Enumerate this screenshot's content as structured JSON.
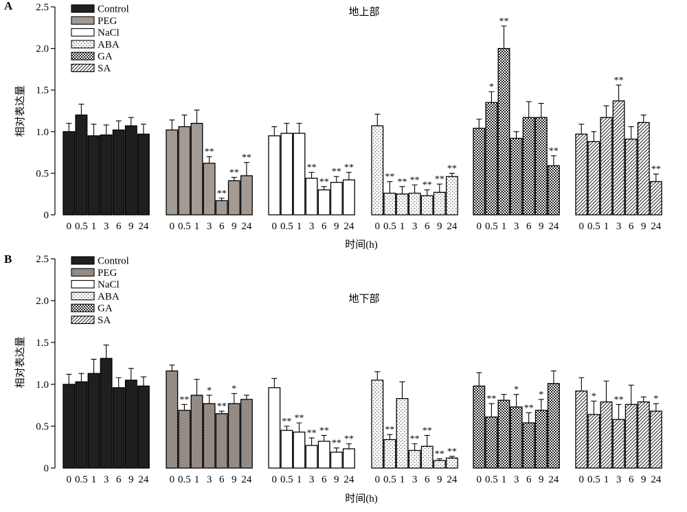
{
  "colors": {
    "control": "#1f1f1f",
    "peg": "#a39a94",
    "outline": "#000000",
    "background": "#ffffff"
  },
  "legend_entries": [
    "Control",
    "PEG",
    "NaCl",
    "ABA",
    "GA",
    "SA"
  ],
  "chart_data": [
    {
      "type": "bar",
      "panel_label": "A",
      "title": "地上部",
      "xlabel": "时间(h)",
      "ylabel": "相对表达量",
      "ylim": [
        0,
        2.5
      ],
      "yticks": [
        "0",
        "0.5",
        "1.0",
        "1.5",
        "2.0",
        "2.5"
      ],
      "categories": [
        "0",
        "0.5",
        "1",
        "3",
        "6",
        "9",
        "24"
      ],
      "legend_placement": "top-left",
      "grid": false,
      "series": [
        {
          "name": "Control",
          "pattern": "control",
          "values": [
            1.0,
            1.2,
            0.95,
            0.96,
            1.02,
            1.07,
            0.97
          ],
          "errors": [
            0.1,
            0.13,
            0.14,
            0.12,
            0.11,
            0.1,
            0.12
          ],
          "sig": [
            "",
            "",
            "",
            "",
            "",
            "",
            ""
          ]
        },
        {
          "name": "PEG",
          "pattern": "peg",
          "values": [
            1.02,
            1.06,
            1.1,
            0.62,
            0.17,
            0.41,
            0.47
          ],
          "errors": [
            0.12,
            0.14,
            0.16,
            0.08,
            0.03,
            0.04,
            0.16
          ],
          "sig": [
            "",
            "",
            "",
            "**",
            "**",
            "**",
            "**"
          ]
        },
        {
          "name": "NaCl",
          "pattern": "nacl",
          "values": [
            0.95,
            0.98,
            0.98,
            0.44,
            0.3,
            0.39,
            0.42
          ],
          "errors": [
            0.11,
            0.12,
            0.12,
            0.07,
            0.04,
            0.07,
            0.09
          ],
          "sig": [
            "",
            "",
            "",
            "**",
            "**",
            "**",
            "**"
          ]
        },
        {
          "name": "ABA",
          "pattern": "aba",
          "values": [
            1.07,
            0.26,
            0.25,
            0.26,
            0.23,
            0.27,
            0.46
          ],
          "errors": [
            0.14,
            0.14,
            0.09,
            0.1,
            0.07,
            0.1,
            0.04
          ],
          "sig": [
            "",
            "**",
            "**",
            "**",
            "**",
            "**",
            "**"
          ]
        },
        {
          "name": "GA",
          "pattern": "ga",
          "values": [
            1.04,
            1.35,
            2.0,
            0.92,
            1.17,
            1.17,
            0.59
          ],
          "errors": [
            0.11,
            0.13,
            0.27,
            0.08,
            0.19,
            0.17,
            0.12
          ],
          "sig": [
            "",
            "*",
            "**",
            "",
            "",
            "",
            "**"
          ]
        },
        {
          "name": "SA",
          "pattern": "sa",
          "values": [
            0.97,
            0.88,
            1.17,
            1.37,
            0.91,
            1.11,
            0.4
          ],
          "errors": [
            0.12,
            0.12,
            0.14,
            0.19,
            0.15,
            0.09,
            0.09
          ],
          "sig": [
            "",
            "",
            "",
            "**",
            "",
            "",
            "**"
          ]
        }
      ]
    },
    {
      "type": "bar",
      "panel_label": "B",
      "title": "地下部",
      "xlabel": "时间(h)",
      "ylabel": "相对表达量",
      "ylim": [
        0,
        2.5
      ],
      "yticks": [
        "0",
        "0.5",
        "1.0",
        "1.5",
        "2.0",
        "2.5"
      ],
      "categories": [
        "0",
        "0.5",
        "1",
        "3",
        "6",
        "9",
        "24"
      ],
      "legend_placement": "top-left",
      "grid": false,
      "series": [
        {
          "name": "Control",
          "pattern": "control",
          "values": [
            1.0,
            1.03,
            1.13,
            1.31,
            0.96,
            1.05,
            0.98
          ],
          "errors": [
            0.12,
            0.1,
            0.17,
            0.16,
            0.12,
            0.14,
            0.11
          ],
          "sig": [
            "",
            "",
            "",
            "",
            "",
            "",
            ""
          ]
        },
        {
          "name": "PEG",
          "pattern": "pegB",
          "values": [
            1.16,
            0.69,
            0.87,
            0.77,
            0.65,
            0.77,
            0.82
          ],
          "errors": [
            0.07,
            0.07,
            0.19,
            0.1,
            0.03,
            0.12,
            0.05
          ],
          "sig": [
            "",
            "**",
            "",
            "*",
            "**",
            "*",
            ""
          ]
        },
        {
          "name": "NaCl",
          "pattern": "nacl",
          "values": [
            0.96,
            0.45,
            0.43,
            0.27,
            0.32,
            0.19,
            0.23
          ],
          "errors": [
            0.11,
            0.05,
            0.11,
            0.09,
            0.07,
            0.05,
            0.06
          ],
          "sig": [
            "",
            "**",
            "**",
            "**",
            "**",
            "**",
            "**"
          ]
        },
        {
          "name": "ABA",
          "pattern": "aba",
          "values": [
            1.05,
            0.34,
            0.83,
            0.21,
            0.26,
            0.09,
            0.12
          ],
          "errors": [
            0.1,
            0.06,
            0.2,
            0.08,
            0.13,
            0.02,
            0.02
          ],
          "sig": [
            "",
            "**",
            "",
            "**",
            "**",
            "**",
            "**"
          ]
        },
        {
          "name": "GA",
          "pattern": "ga",
          "values": [
            0.98,
            0.61,
            0.81,
            0.73,
            0.54,
            0.69,
            1.01
          ],
          "errors": [
            0.16,
            0.16,
            0.07,
            0.15,
            0.12,
            0.13,
            0.15
          ],
          "sig": [
            "",
            "**",
            "",
            "*",
            "**",
            "*",
            ""
          ]
        },
        {
          "name": "SA",
          "pattern": "sa",
          "values": [
            0.92,
            0.64,
            0.79,
            0.58,
            0.76,
            0.79,
            0.68
          ],
          "errors": [
            0.16,
            0.16,
            0.25,
            0.18,
            0.23,
            0.06,
            0.09
          ],
          "sig": [
            "",
            "*",
            "",
            "**",
            "",
            "",
            "*"
          ]
        }
      ]
    }
  ]
}
